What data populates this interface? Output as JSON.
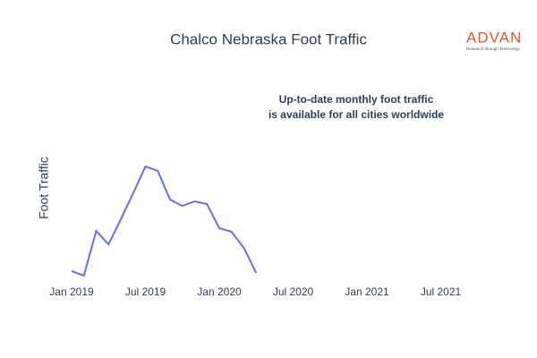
{
  "chart_data": {
    "type": "line",
    "title": "Chalco Nebraska Foot Traffic",
    "logo": "ADVAN",
    "logo_tagline": "Research through Technology",
    "annotation": [
      "Up-to-date monthly foot traffic",
      "is available for all cities worldwide"
    ],
    "y_label": "Foot Traffic",
    "x": [
      "2019-01",
      "2019-02",
      "2019-03",
      "2019-04",
      "2019-05",
      "2019-06",
      "2019-07",
      "2019-08",
      "2019-09",
      "2019-10",
      "2019-11",
      "2019-12",
      "2020-01",
      "2020-02",
      "2020-03",
      "2020-04"
    ],
    "series": [
      {
        "color": "#636efa",
        "values": [
          8.6,
          5,
          40.7,
          30,
          50,
          70.7,
          92.1,
          88.6,
          65.7,
          60.7,
          64.3,
          62.1,
          42.9,
          40,
          27.1,
          7.1
        ]
      }
    ],
    "xlim": [
      "2019-01",
      "2021-09"
    ],
    "xticks": [
      {
        "value": "2019-01",
        "label": "Jan 2019"
      },
      {
        "value": "2019-07",
        "label": "Jul 2019"
      },
      {
        "value": "2020-01",
        "label": "Jan 2020"
      },
      {
        "value": "2020-07",
        "label": "Jul 2020"
      },
      {
        "value": "2021-01",
        "label": "Jan 2021"
      },
      {
        "value": "2021-07",
        "label": "Jul 2021"
      }
    ],
    "ylim": [
      0,
      100
    ],
    "logo_color": "#e8572a"
  }
}
